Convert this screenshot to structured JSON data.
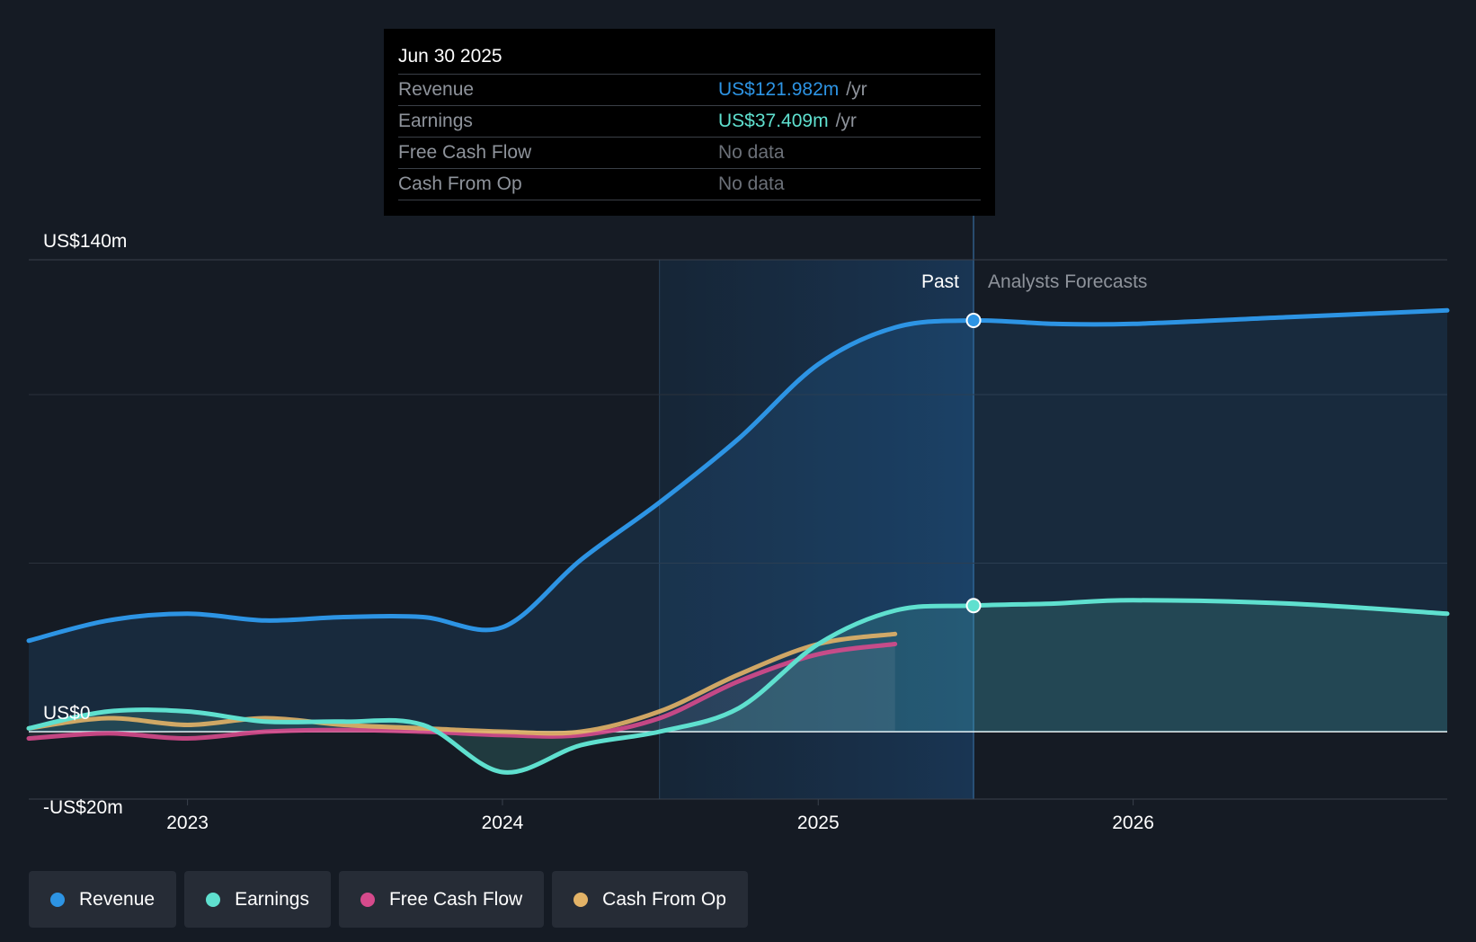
{
  "chart_data": {
    "type": "line",
    "currency_unit": "US$m",
    "x_range": [
      "2022-07-01",
      "2026-12-31"
    ],
    "ylim": [
      -20,
      140
    ],
    "y_tick_labels": [
      {
        "value": 140,
        "label": "US$140m"
      },
      {
        "value": 0,
        "label": "US$0"
      },
      {
        "value": -20,
        "label": "-US$20m"
      }
    ],
    "x_tick_labels": [
      {
        "date": "2023-01-01",
        "label": "2023"
      },
      {
        "date": "2024-01-01",
        "label": "2024"
      },
      {
        "date": "2025-01-01",
        "label": "2025"
      },
      {
        "date": "2026-01-01",
        "label": "2026"
      }
    ],
    "gridlines": [
      100,
      50
    ],
    "highlight_start": "2024-07-01",
    "past_end": "2025-06-30",
    "past_label": "Past",
    "forecast_label": "Analysts Forecasts",
    "series": [
      {
        "name": "Revenue",
        "key": "revenue",
        "color": "#2d94e4",
        "fill": true,
        "points": [
          [
            "2022-07-01",
            27
          ],
          [
            "2022-10-01",
            33
          ],
          [
            "2023-01-01",
            35
          ],
          [
            "2023-04-01",
            33
          ],
          [
            "2023-07-01",
            34
          ],
          [
            "2023-10-01",
            34
          ],
          [
            "2024-01-01",
            31
          ],
          [
            "2024-04-01",
            51
          ],
          [
            "2024-07-01",
            68
          ],
          [
            "2024-10-01",
            87
          ],
          [
            "2025-01-01",
            109
          ],
          [
            "2025-04-01",
            120
          ],
          [
            "2025-06-30",
            122
          ],
          [
            "2025-10-01",
            121
          ],
          [
            "2026-01-01",
            121
          ],
          [
            "2026-07-01",
            123
          ],
          [
            "2026-12-31",
            125
          ]
        ]
      },
      {
        "name": "Earnings",
        "key": "earnings",
        "color": "#5fe0cf",
        "fill": true,
        "points": [
          [
            "2022-07-01",
            1
          ],
          [
            "2022-10-01",
            6
          ],
          [
            "2023-01-01",
            6
          ],
          [
            "2023-04-01",
            3
          ],
          [
            "2023-07-01",
            3
          ],
          [
            "2023-10-01",
            2
          ],
          [
            "2024-01-01",
            -12
          ],
          [
            "2024-04-01",
            -4
          ],
          [
            "2024-07-01",
            0
          ],
          [
            "2024-10-01",
            7
          ],
          [
            "2025-01-01",
            26
          ],
          [
            "2025-04-01",
            36
          ],
          [
            "2025-06-30",
            37.4
          ],
          [
            "2025-10-01",
            38
          ],
          [
            "2026-01-01",
            39
          ],
          [
            "2026-07-01",
            38
          ],
          [
            "2026-12-31",
            35
          ]
        ]
      },
      {
        "name": "Free Cash Flow",
        "key": "fcf",
        "color": "#d64a8c",
        "fill": false,
        "points": [
          [
            "2022-07-01",
            -2
          ],
          [
            "2022-10-01",
            -0.5
          ],
          [
            "2023-01-01",
            -2
          ],
          [
            "2023-04-01",
            0
          ],
          [
            "2023-07-01",
            0.5
          ],
          [
            "2023-10-01",
            0
          ],
          [
            "2024-01-01",
            -1
          ],
          [
            "2024-04-01",
            -1
          ],
          [
            "2024-07-01",
            4
          ],
          [
            "2024-10-01",
            15
          ],
          [
            "2025-01-01",
            23
          ],
          [
            "2025-03-31",
            26
          ]
        ]
      },
      {
        "name": "Cash From Op",
        "key": "cfo",
        "color": "#e3b367",
        "fill": false,
        "points": [
          [
            "2022-07-01",
            1
          ],
          [
            "2022-10-01",
            4
          ],
          [
            "2023-01-01",
            2
          ],
          [
            "2023-04-01",
            4
          ],
          [
            "2023-07-01",
            2
          ],
          [
            "2023-10-01",
            1
          ],
          [
            "2024-01-01",
            0
          ],
          [
            "2024-04-01",
            0
          ],
          [
            "2024-07-01",
            6
          ],
          [
            "2024-10-01",
            17
          ],
          [
            "2025-01-01",
            26
          ],
          [
            "2025-03-31",
            29
          ]
        ]
      }
    ],
    "tooltip": {
      "date": "Jun 30 2025",
      "rows": [
        {
          "label": "Revenue",
          "value": "US$121.982m",
          "unit": "/yr",
          "color": "#2d94e4"
        },
        {
          "label": "Earnings",
          "value": "US$37.409m",
          "unit": "/yr",
          "color": "#5fe0cf"
        },
        {
          "label": "Free Cash Flow",
          "value": "No data",
          "unit": "",
          "color": "#6b7078"
        },
        {
          "label": "Cash From Op",
          "value": "No data",
          "unit": "",
          "color": "#6b7078"
        }
      ]
    }
  },
  "legend": [
    {
      "label": "Revenue",
      "color": "#2d94e4"
    },
    {
      "label": "Earnings",
      "color": "#5fe0cf"
    },
    {
      "label": "Free Cash Flow",
      "color": "#d64a8c"
    },
    {
      "label": "Cash From Op",
      "color": "#e3b367"
    }
  ]
}
